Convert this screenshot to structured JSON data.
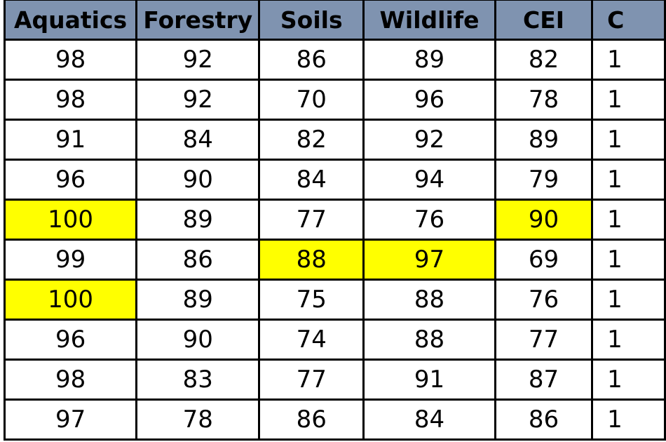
{
  "table": {
    "headers": [
      "Aquatics",
      "Forestry",
      "Soils",
      "Wildlife",
      "CEI",
      "C"
    ],
    "rows": [
      {
        "values": [
          "98",
          "92",
          "86",
          "89",
          "82",
          "1"
        ],
        "highlight": []
      },
      {
        "values": [
          "98",
          "92",
          "70",
          "96",
          "78",
          "1"
        ],
        "highlight": []
      },
      {
        "values": [
          "91",
          "84",
          "82",
          "92",
          "89",
          "1"
        ],
        "highlight": []
      },
      {
        "values": [
          "96",
          "90",
          "84",
          "94",
          "79",
          "1"
        ],
        "highlight": []
      },
      {
        "values": [
          "100",
          "89",
          "77",
          "76",
          "90",
          "1"
        ],
        "highlight": [
          0,
          4
        ]
      },
      {
        "values": [
          "99",
          "86",
          "88",
          "97",
          "69",
          "1"
        ],
        "highlight": [
          2,
          3
        ]
      },
      {
        "values": [
          "100",
          "89",
          "75",
          "88",
          "76",
          "1"
        ],
        "highlight": [
          0
        ]
      },
      {
        "values": [
          "96",
          "90",
          "74",
          "88",
          "77",
          "1"
        ],
        "highlight": []
      },
      {
        "values": [
          "98",
          "83",
          "77",
          "91",
          "87",
          "1"
        ],
        "highlight": []
      },
      {
        "values": [
          "97",
          "78",
          "86",
          "84",
          "86",
          "1"
        ],
        "highlight": []
      }
    ],
    "highlight_color": "#ffff00",
    "header_color": "#7f93b0"
  }
}
